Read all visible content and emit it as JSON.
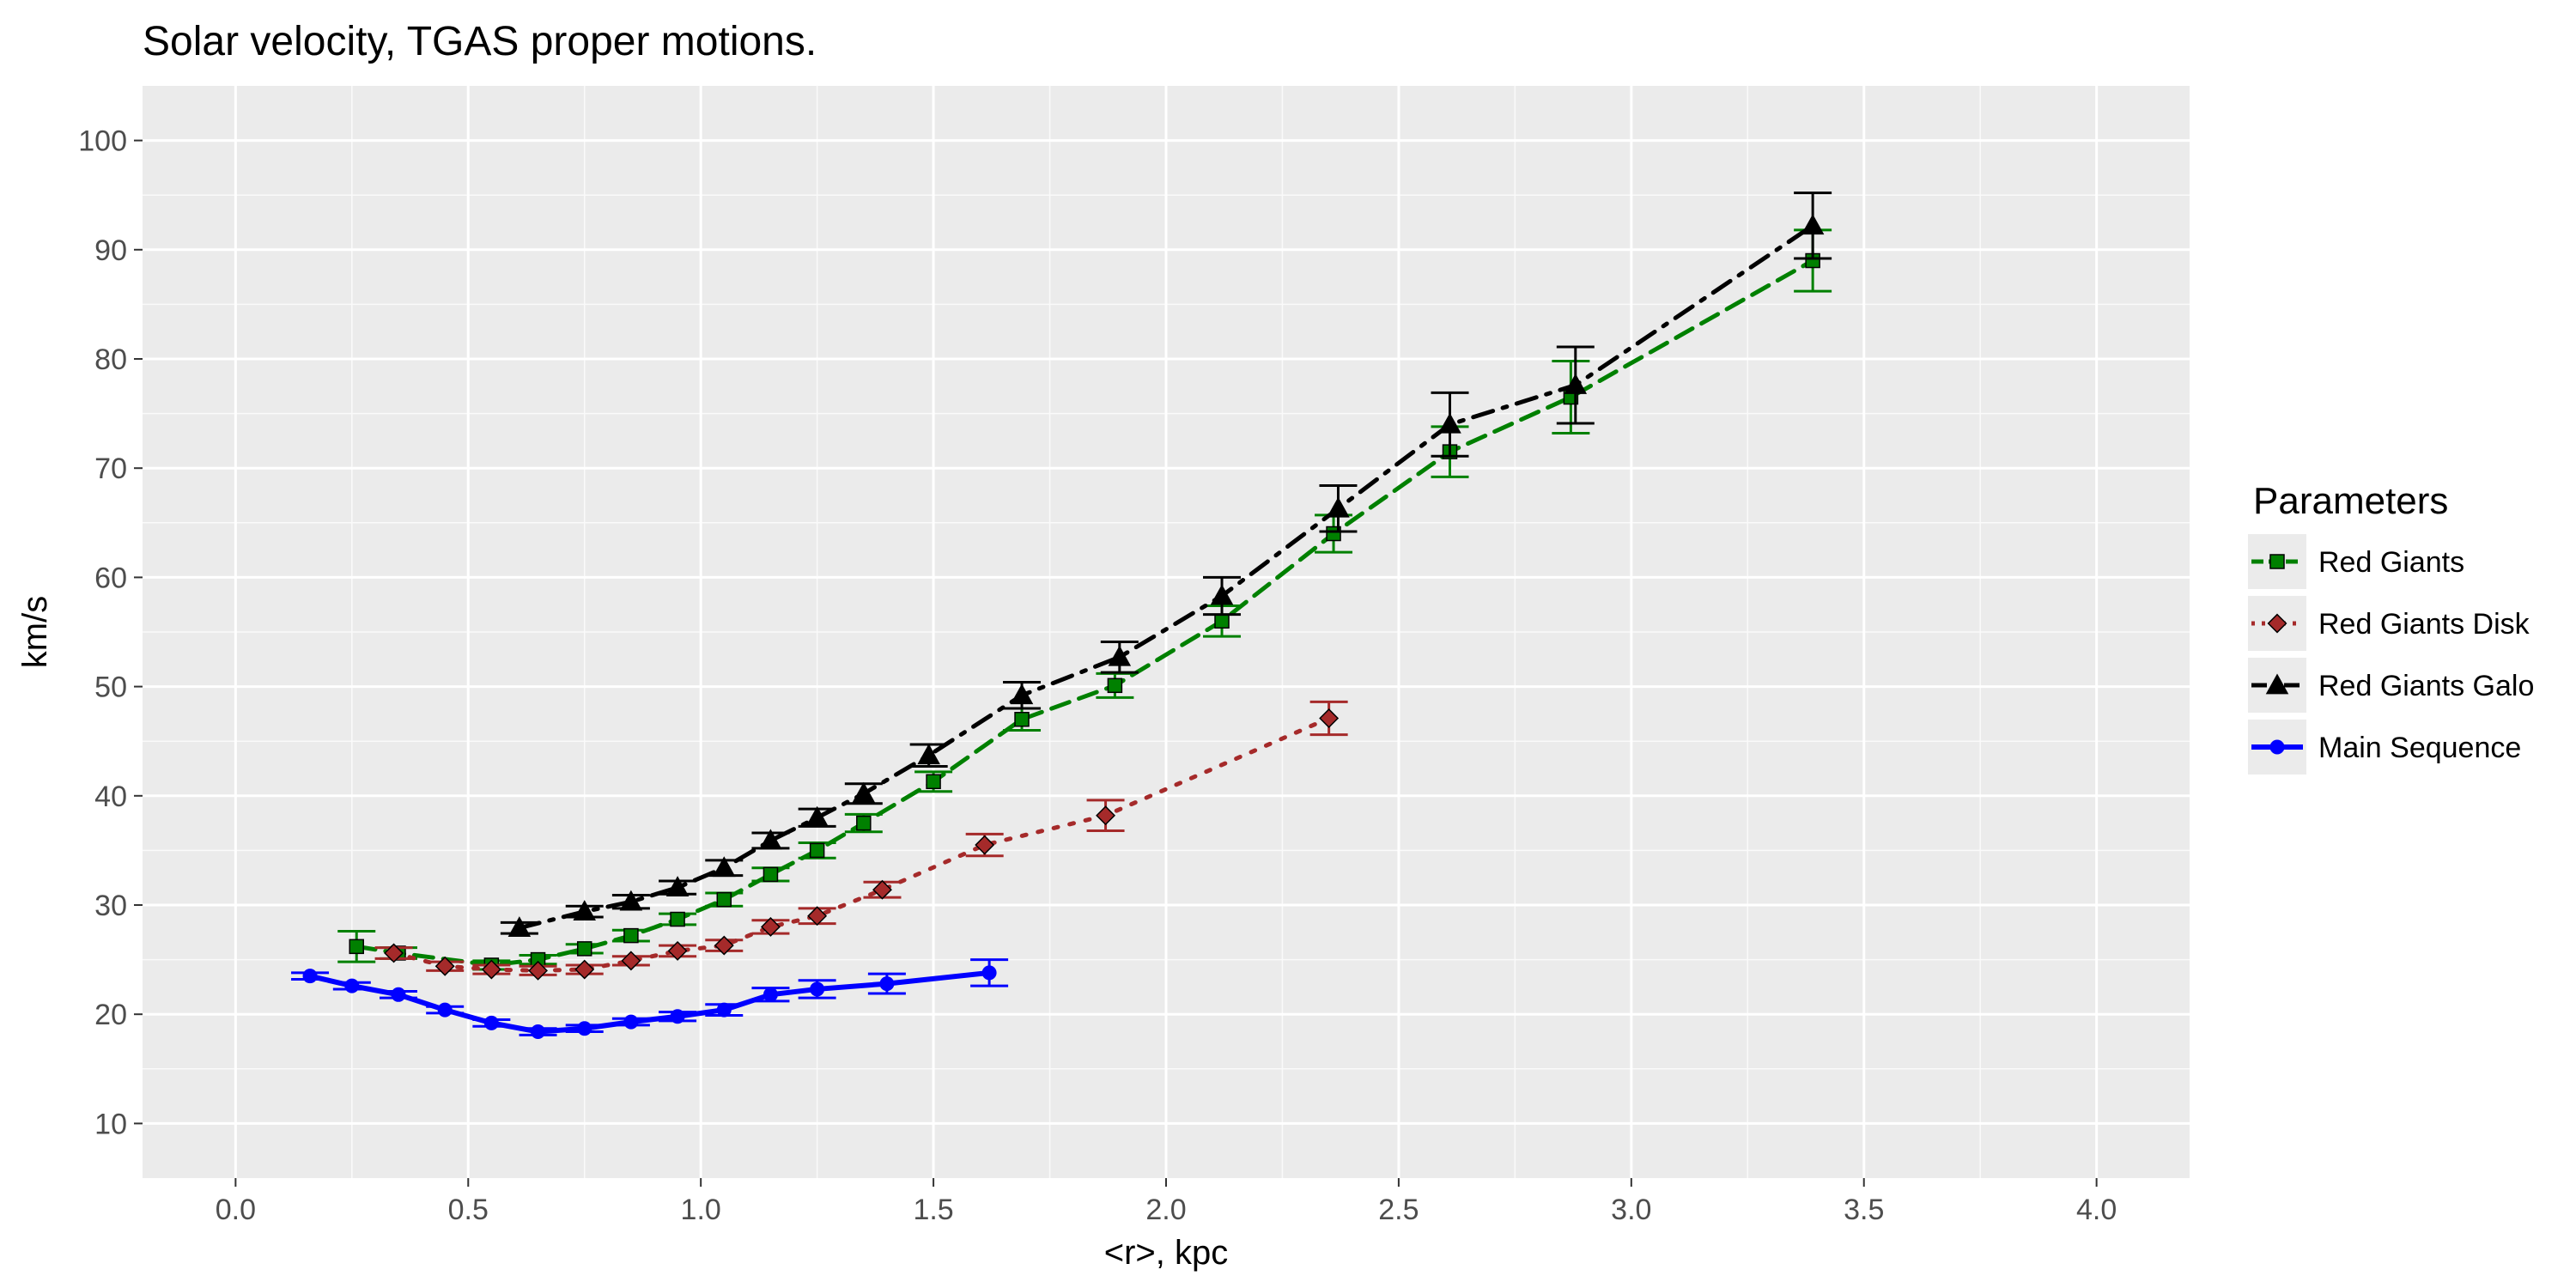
{
  "chart_data": {
    "type": "line",
    "title": "Solar velocity,  TGAS  proper motions.",
    "xlabel": "<r>, kpc",
    "ylabel": "km/s",
    "xlim": [
      -0.2,
      4.2
    ],
    "ylim": [
      5,
      105
    ],
    "x_ticks": [
      "0.0",
      "0.5",
      "1.0",
      "1.5",
      "2.0",
      "2.5",
      "3.0",
      "3.5",
      "4.0"
    ],
    "y_ticks": [
      "10",
      "20",
      "30",
      "40",
      "50",
      "60",
      "70",
      "80",
      "90",
      "100"
    ],
    "grid": true,
    "legend": {
      "title": "Parameters",
      "position": "right"
    },
    "series": [
      {
        "name": "Red Giants",
        "color": "#008000",
        "marker": "square",
        "line_style": "dashed",
        "points": [
          {
            "x": 0.26,
            "y": 26.2,
            "err": 1.4
          },
          {
            "x": 0.35,
            "y": 25.6,
            "err": 0.5
          },
          {
            "x": 0.55,
            "y": 24.5,
            "err": 0.4
          },
          {
            "x": 0.65,
            "y": 25.0,
            "err": 0.4
          },
          {
            "x": 0.75,
            "y": 26.0,
            "err": 0.4
          },
          {
            "x": 0.85,
            "y": 27.2,
            "err": 0.5
          },
          {
            "x": 0.95,
            "y": 28.7,
            "err": 0.5
          },
          {
            "x": 1.05,
            "y": 30.5,
            "err": 0.6
          },
          {
            "x": 1.15,
            "y": 32.8,
            "err": 0.6
          },
          {
            "x": 1.25,
            "y": 35.0,
            "err": 0.7
          },
          {
            "x": 1.35,
            "y": 37.5,
            "err": 0.8
          },
          {
            "x": 1.5,
            "y": 41.3,
            "err": 0.9
          },
          {
            "x": 1.69,
            "y": 47.0,
            "err": 1.0
          },
          {
            "x": 1.89,
            "y": 50.1,
            "err": 1.1
          },
          {
            "x": 2.12,
            "y": 56.0,
            "err": 1.4
          },
          {
            "x": 2.36,
            "y": 64.0,
            "err": 1.7
          },
          {
            "x": 2.61,
            "y": 71.5,
            "err": 2.3
          },
          {
            "x": 2.87,
            "y": 76.5,
            "err": 3.3
          },
          {
            "x": 3.39,
            "y": 89.0,
            "err": 2.8
          }
        ]
      },
      {
        "name": "Red Giants Disk",
        "color": "#a52a2a",
        "marker": "diamond",
        "line_style": "dotted",
        "points": [
          {
            "x": 0.34,
            "y": 25.6,
            "err": 0.5
          },
          {
            "x": 0.45,
            "y": 24.4,
            "err": 0.4
          },
          {
            "x": 0.55,
            "y": 24.1,
            "err": 0.4
          },
          {
            "x": 0.65,
            "y": 24.0,
            "err": 0.4
          },
          {
            "x": 0.75,
            "y": 24.1,
            "err": 0.4
          },
          {
            "x": 0.85,
            "y": 24.9,
            "err": 0.4
          },
          {
            "x": 0.95,
            "y": 25.8,
            "err": 0.5
          },
          {
            "x": 1.05,
            "y": 26.3,
            "err": 0.5
          },
          {
            "x": 1.15,
            "y": 28.0,
            "err": 0.6
          },
          {
            "x": 1.25,
            "y": 29.0,
            "err": 0.7
          },
          {
            "x": 1.39,
            "y": 31.4,
            "err": 0.7
          },
          {
            "x": 1.61,
            "y": 35.5,
            "err": 1.0
          },
          {
            "x": 1.87,
            "y": 38.2,
            "err": 1.4
          },
          {
            "x": 2.35,
            "y": 47.1,
            "err": 1.5
          }
        ]
      },
      {
        "name": "Red Giants Galo",
        "color": "#000000",
        "marker": "triangle",
        "line_style": "dashdot",
        "points": [
          {
            "x": 0.61,
            "y": 27.9,
            "err": 0.5
          },
          {
            "x": 0.75,
            "y": 29.4,
            "err": 0.5
          },
          {
            "x": 0.85,
            "y": 30.3,
            "err": 0.6
          },
          {
            "x": 0.95,
            "y": 31.6,
            "err": 0.6
          },
          {
            "x": 1.05,
            "y": 33.4,
            "err": 0.7
          },
          {
            "x": 1.15,
            "y": 35.9,
            "err": 0.7
          },
          {
            "x": 1.25,
            "y": 38.0,
            "err": 0.8
          },
          {
            "x": 1.35,
            "y": 40.2,
            "err": 0.9
          },
          {
            "x": 1.49,
            "y": 43.7,
            "err": 1.0
          },
          {
            "x": 1.69,
            "y": 49.2,
            "err": 1.2
          },
          {
            "x": 1.9,
            "y": 52.7,
            "err": 1.4
          },
          {
            "x": 2.12,
            "y": 58.3,
            "err": 1.7
          },
          {
            "x": 2.37,
            "y": 66.3,
            "err": 2.1
          },
          {
            "x": 2.61,
            "y": 74.0,
            "err": 2.9
          },
          {
            "x": 2.88,
            "y": 77.6,
            "err": 3.5
          },
          {
            "x": 3.39,
            "y": 92.2,
            "err": 3.0
          }
        ]
      },
      {
        "name": "Main Sequence",
        "color": "#0000ff",
        "marker": "circle",
        "line_style": "solid",
        "points": [
          {
            "x": 0.16,
            "y": 23.5,
            "err": 0.3
          },
          {
            "x": 0.25,
            "y": 22.6,
            "err": 0.3
          },
          {
            "x": 0.35,
            "y": 21.8,
            "err": 0.3
          },
          {
            "x": 0.45,
            "y": 20.4,
            "err": 0.3
          },
          {
            "x": 0.55,
            "y": 19.2,
            "err": 0.3
          },
          {
            "x": 0.65,
            "y": 18.4,
            "err": 0.3
          },
          {
            "x": 0.75,
            "y": 18.7,
            "err": 0.3
          },
          {
            "x": 0.85,
            "y": 19.3,
            "err": 0.3
          },
          {
            "x": 0.95,
            "y": 19.8,
            "err": 0.4
          },
          {
            "x": 1.05,
            "y": 20.4,
            "err": 0.5
          },
          {
            "x": 1.15,
            "y": 21.8,
            "err": 0.6
          },
          {
            "x": 1.25,
            "y": 22.3,
            "err": 0.8
          },
          {
            "x": 1.4,
            "y": 22.8,
            "err": 0.9
          },
          {
            "x": 1.62,
            "y": 23.8,
            "err": 1.2
          }
        ]
      }
    ]
  }
}
